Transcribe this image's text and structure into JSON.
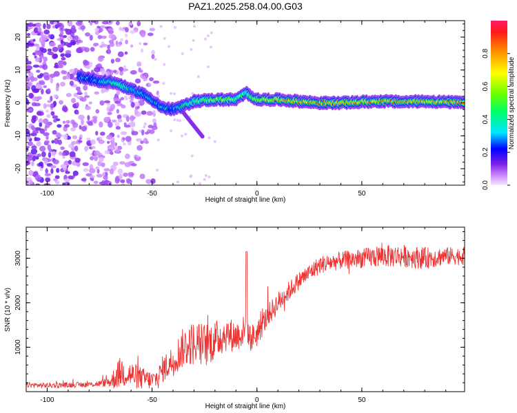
{
  "title": "PAZ1.2025.258.04.00.G03",
  "chart_data": [
    {
      "type": "heatmap",
      "xlabel": "Height of straight line (km)",
      "ylabel": "Frequency (Hz)",
      "xlim": [
        -110,
        99
      ],
      "ylim": [
        -25,
        25
      ],
      "xticks": [
        -100,
        -50,
        0,
        50
      ],
      "yticks": [
        -20,
        -10,
        0,
        10,
        20
      ],
      "colorbar": {
        "label": "Normalized spectral amplitude",
        "range": [
          0.0,
          1.0
        ],
        "ticks": [
          0.0,
          0.2,
          0.4,
          0.6,
          0.8
        ],
        "tick_labels": [
          "0.0",
          "0.2",
          "0.4",
          "0.6",
          "0.8"
        ]
      },
      "ridge_frequency": {
        "x": [
          -85,
          -80,
          -75,
          -70,
          -65,
          -60,
          -55,
          -50,
          -45,
          -40,
          -35,
          -30,
          -25,
          -20,
          -15,
          -10,
          -5,
          0,
          10,
          20,
          30,
          40,
          50,
          60,
          70,
          80,
          90,
          99
        ],
        "y": [
          8,
          7.5,
          6.5,
          6.5,
          5.5,
          4,
          3,
          1,
          -1.5,
          -2,
          -1,
          0.5,
          0.8,
          1,
          1,
          1,
          3,
          1,
          1,
          0.5,
          0,
          0,
          0.3,
          0.5,
          0.3,
          0.5,
          0.3,
          0
        ],
        "amplitude": [
          0.25,
          0.3,
          0.35,
          0.4,
          0.45,
          0.4,
          0.35,
          0.35,
          0.35,
          0.35,
          0.4,
          0.45,
          0.5,
          0.55,
          0.55,
          0.5,
          0.5,
          0.6,
          0.7,
          0.75,
          0.8,
          0.8,
          0.75,
          0.8,
          0.8,
          0.75,
          0.75,
          0.8
        ]
      },
      "background_noise_region_x": [
        -110,
        -65
      ]
    },
    {
      "type": "line",
      "xlabel": "Height of straight line (km)",
      "ylabel": "SNR (10 * v/v)",
      "xlim": [
        -110,
        99
      ],
      "ylim": [
        0,
        3700
      ],
      "xticks": [
        -100,
        -50,
        0,
        50
      ],
      "yticks": [
        1000,
        2000,
        3000
      ],
      "series": [
        {
          "color": "#ee3333",
          "x": [
            -110,
            -100,
            -90,
            -80,
            -75,
            -70,
            -68,
            -65,
            -60,
            -55,
            -50,
            -47,
            -45,
            -40,
            -35,
            -30,
            -25,
            -20,
            -15,
            -10,
            -5,
            -3,
            0,
            5,
            10,
            15,
            20,
            30,
            40,
            50,
            60,
            70,
            80,
            90,
            99
          ],
          "y": [
            150,
            140,
            150,
            160,
            180,
            220,
            300,
            450,
            380,
            300,
            250,
            320,
            500,
            700,
            1000,
            1100,
            1050,
            1150,
            1300,
            1250,
            1400,
            1200,
            1300,
            1700,
            2000,
            2250,
            2500,
            2850,
            2950,
            3000,
            3050,
            3050,
            3000,
            3050,
            3050
          ],
          "noise_amplitude": [
            60,
            60,
            60,
            60,
            70,
            120,
            250,
            350,
            300,
            250,
            200,
            250,
            300,
            350,
            450,
            500,
            500,
            450,
            400,
            350,
            350,
            300,
            300,
            250,
            250,
            220,
            200,
            200,
            200,
            220,
            250,
            250,
            250,
            200,
            200
          ]
        }
      ]
    }
  ]
}
